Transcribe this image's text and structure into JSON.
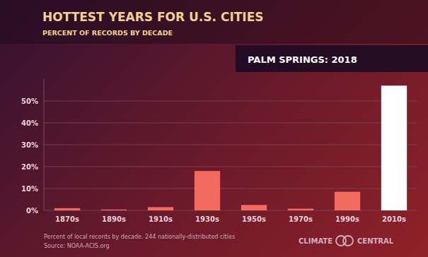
{
  "chart_data": {
    "type": "bar",
    "title": "HOTTEST YEARS FOR U.S. CITIES",
    "subtitle": "PERCENT OF RECORDS BY DECADE",
    "annotations": [
      "PALM SPRINGS: 2018"
    ],
    "footnotes": [
      "Percent of local records by decade. 244 nationally-distributed cities",
      "Source: NOAA-ACIS.org"
    ],
    "logo_text": [
      "CLIMATE",
      "CENTRAL"
    ],
    "categories": [
      "1870s",
      "1890s",
      "1910s",
      "1930s",
      "1950s",
      "1970s",
      "1990s",
      "2010s"
    ],
    "values": [
      1.0,
      0.4,
      1.5,
      18.0,
      2.5,
      0.8,
      8.5,
      57.0
    ],
    "colors": [
      "#f26b5e",
      "#f26b5e",
      "#f26b5e",
      "#f26b5e",
      "#f26b5e",
      "#f26b5e",
      "#f26b5e",
      "#ffffff"
    ],
    "ylim": [
      0,
      60
    ],
    "yticks": [
      {
        "value": 0,
        "label": "0%"
      },
      {
        "value": 10,
        "label": "10%"
      },
      {
        "value": 20,
        "label": "20%"
      },
      {
        "value": 30,
        "label": "30%"
      },
      {
        "value": 40,
        "label": "40%"
      },
      {
        "value": 50,
        "label": "50%"
      }
    ],
    "grid": true
  }
}
